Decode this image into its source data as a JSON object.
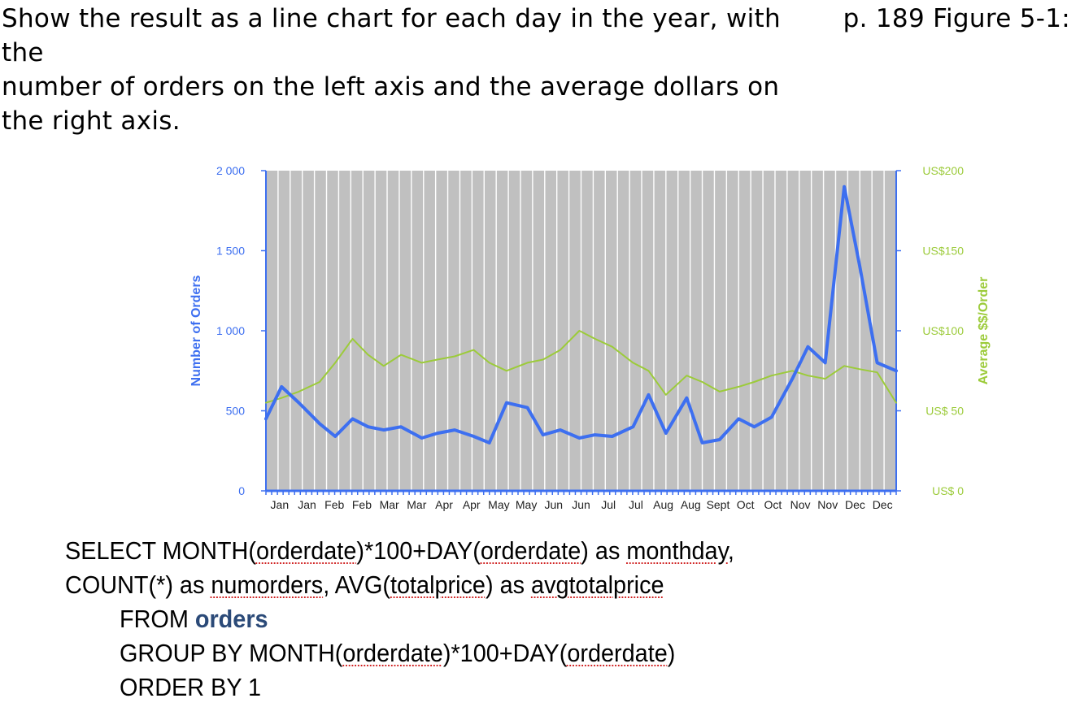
{
  "prompt": {
    "lines": [
      "Show the result as a line chart for each day in the year, with the",
      "number of orders on the left axis and the average dollars on",
      "the right axis."
    ],
    "reference": "p. 189 Figure 5-1:"
  },
  "chart_data": {
    "type": "line",
    "ylabel": "Number of Orders",
    "y2label": "Average $$/Order",
    "ylim": [
      0,
      2000
    ],
    "y2lim": [
      0,
      200
    ],
    "yticks": [
      0,
      500,
      1000,
      1500,
      2000
    ],
    "ytick_labels": [
      "0",
      "500",
      "1 000",
      "1 500",
      "2 000"
    ],
    "y2ticks": [
      0,
      50,
      100,
      150,
      200
    ],
    "y2tick_labels": [
      "US$ 0",
      "US$ 50",
      "US$100",
      "US$150",
      "US$200"
    ],
    "xtick_labels": [
      "Jan",
      "Jan",
      "Feb",
      "Feb",
      "Mar",
      "Mar",
      "Apr",
      "Apr",
      "May",
      "May",
      "Jun",
      "Jun",
      "Jul",
      "Jul",
      "Aug",
      "Aug",
      "Sept",
      "Oct",
      "Oct",
      "Nov",
      "Nov",
      "Dec",
      "Dec"
    ],
    "grid": "vertical",
    "colors": {
      "orders": "#3d6ff0",
      "avg": "#9ccb3a",
      "plot_bg": "#c0c0c0",
      "grid": "#ffffff",
      "left_axis": "#3d6ff0",
      "right_axis": "#9ccb3a"
    },
    "series": [
      {
        "name": "Number of Orders",
        "axis": "left",
        "x": [
          "01-01",
          "01-10",
          "01-20",
          "02-01",
          "02-10",
          "02-20",
          "03-01",
          "03-10",
          "03-20",
          "04-01",
          "04-10",
          "04-20",
          "05-01",
          "05-10",
          "05-20",
          "06-01",
          "06-10",
          "06-20",
          "07-01",
          "07-10",
          "07-20",
          "08-01",
          "08-10",
          "08-20",
          "09-01",
          "09-10",
          "09-20",
          "10-01",
          "10-10",
          "10-20",
          "11-01",
          "11-10",
          "11-20",
          "12-01",
          "12-10",
          "12-20",
          "12-31"
        ],
        "values": [
          450,
          650,
          550,
          420,
          340,
          450,
          400,
          380,
          400,
          330,
          360,
          380,
          340,
          300,
          550,
          520,
          350,
          380,
          330,
          350,
          340,
          400,
          600,
          360,
          580,
          300,
          320,
          450,
          400,
          460,
          700,
          900,
          800,
          1900,
          1400,
          800,
          750
        ]
      },
      {
        "name": "Average $$/Order",
        "axis": "right",
        "x": [
          "01-01",
          "01-10",
          "01-20",
          "02-01",
          "02-10",
          "02-20",
          "03-01",
          "03-10",
          "03-20",
          "04-01",
          "04-10",
          "04-20",
          "05-01",
          "05-10",
          "05-20",
          "06-01",
          "06-10",
          "06-20",
          "07-01",
          "07-10",
          "07-20",
          "08-01",
          "08-10",
          "08-20",
          "09-01",
          "09-10",
          "09-20",
          "10-01",
          "10-10",
          "10-20",
          "11-01",
          "11-10",
          "11-20",
          "12-01",
          "12-10",
          "12-20",
          "12-31"
        ],
        "values": [
          55,
          58,
          62,
          68,
          80,
          95,
          85,
          78,
          85,
          80,
          82,
          84,
          88,
          80,
          75,
          80,
          82,
          88,
          100,
          95,
          90,
          80,
          75,
          60,
          72,
          68,
          62,
          65,
          68,
          72,
          75,
          72,
          70,
          78,
          76,
          74,
          55
        ]
      }
    ]
  },
  "sql": {
    "line1_a": "SELECT MONTH(",
    "line1_b": "orderdate",
    "line1_c": ")*100+DAY(",
    "line1_d": "orderdate",
    "line1_e": ") as ",
    "line1_f": "monthday",
    "line1_g": ",",
    "line2_a": "COUNT(*) as ",
    "line2_b": "numorders",
    "line2_c": ", AVG(",
    "line2_d": "totalprice",
    "line2_e": ") as ",
    "line2_f": "avgtotalprice",
    "line3_a": "FROM ",
    "line3_b": "orders",
    "line4_a": "GROUP BY MONTH(",
    "line4_b": "orderdate",
    "line4_c": ")*100+DAY(",
    "line4_d": "orderdate",
    "line4_e": ")",
    "line5": "ORDER BY 1"
  }
}
